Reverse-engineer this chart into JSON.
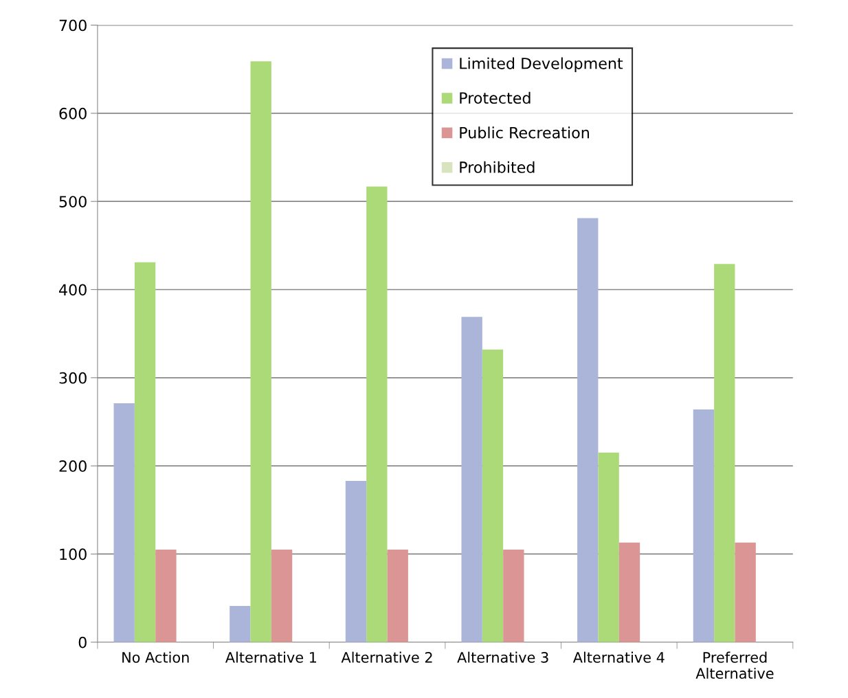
{
  "chart_data": {
    "type": "bar",
    "categories": [
      "No Action",
      "Alternative 1",
      "Alternative 2",
      "Alternative 3",
      "Alternative 4",
      "Preferred\nAlternative"
    ],
    "series": [
      {
        "name": "Limited Development",
        "color": "#aab5d9",
        "values": [
          271,
          41,
          183,
          369,
          481,
          264
        ]
      },
      {
        "name": "Protected",
        "color": "#acda78",
        "values": [
          431,
          659,
          517,
          332,
          215,
          429
        ]
      },
      {
        "name": "Public Recreation",
        "color": "#da9594",
        "values": [
          105,
          105,
          105,
          105,
          113,
          113
        ]
      },
      {
        "name": "Prohibited",
        "color": "#d7e4bd",
        "values": [
          0,
          0,
          0,
          0,
          0,
          0
        ]
      }
    ],
    "ylim": [
      0,
      700
    ],
    "yticks": [
      0,
      100,
      200,
      300,
      400,
      500,
      600,
      700
    ],
    "grid": "y",
    "legend": "top right"
  }
}
